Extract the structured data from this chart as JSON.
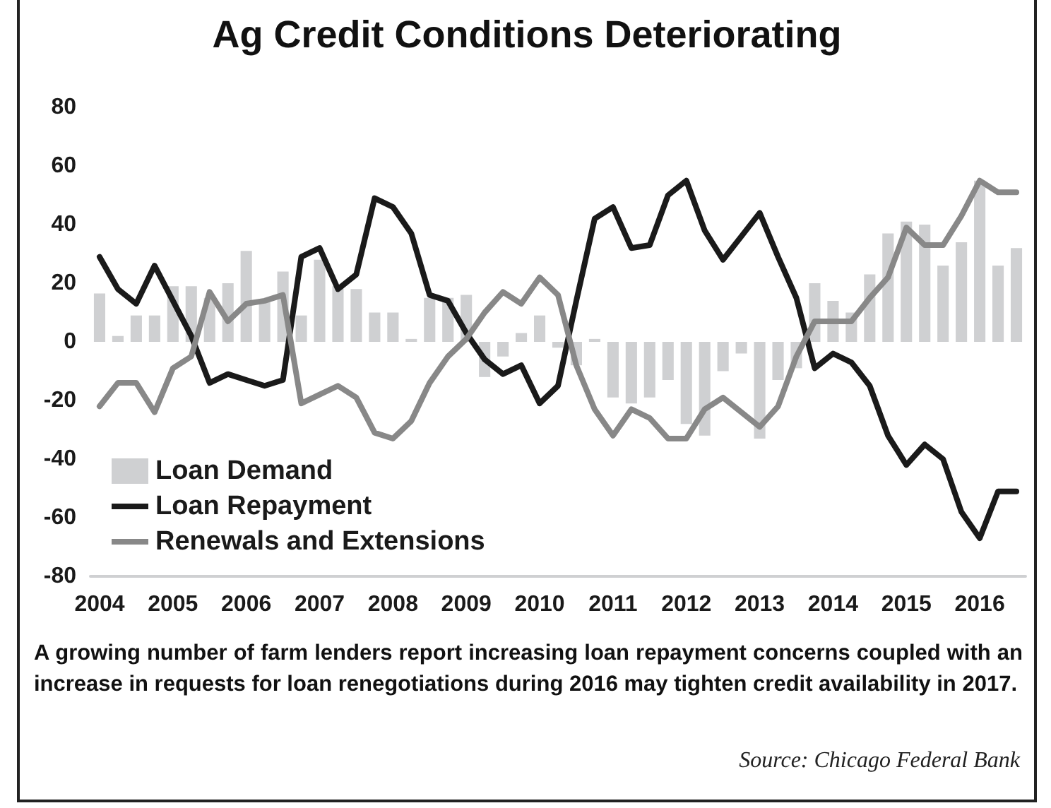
{
  "chart_data": {
    "type": "bar",
    "title": "Ag Credit Conditions Deteriorating",
    "categories": [
      "2004",
      null,
      null,
      null,
      "2005",
      null,
      null,
      null,
      "2006",
      null,
      null,
      null,
      "2007",
      null,
      null,
      null,
      "2008",
      null,
      null,
      null,
      "2009",
      null,
      null,
      null,
      "2010",
      null,
      null,
      null,
      "2011",
      null,
      null,
      null,
      "2012",
      null,
      null,
      null,
      "2013",
      null,
      null,
      null,
      "2014",
      null,
      null,
      null,
      "2015",
      null,
      null,
      null,
      "2016",
      null,
      null
    ],
    "series": [
      {
        "name": "Loan Demand",
        "color": "#cfd0d2",
        "values": [
          16.5,
          2,
          9,
          9,
          19,
          19,
          15,
          20,
          31,
          14,
          24,
          9,
          28,
          19,
          18,
          10,
          10,
          1,
          15,
          15,
          16,
          -12,
          -5,
          3,
          9,
          -2,
          -8,
          1,
          -19,
          -21,
          -19,
          -13,
          -28,
          -32,
          -10,
          -4,
          -33,
          -13,
          -9,
          20,
          14,
          10,
          23,
          37,
          41,
          40,
          26,
          34,
          55,
          26,
          32
        ]
      },
      {
        "name": "Loan Repayment",
        "type": "line",
        "color": "#1a1a1a",
        "values": [
          29,
          18,
          13,
          26,
          14,
          2,
          -14,
          -11,
          -13,
          -15,
          -13,
          29,
          32,
          18,
          23,
          49,
          46,
          37,
          16,
          14,
          3,
          -6,
          -11,
          -8,
          -21,
          -15,
          14,
          42,
          46,
          32,
          33,
          50,
          55,
          38,
          28,
          36,
          44,
          29,
          15,
          -9,
          -4,
          -7,
          -15,
          -32,
          -42,
          -35,
          -40,
          -58,
          -67,
          -51,
          -51
        ]
      },
      {
        "name": "Renewals and Extensions",
        "type": "line",
        "color": "#888888",
        "values": [
          -22,
          -14,
          -14,
          -24,
          -9,
          -5,
          17,
          7,
          13,
          14,
          16,
          -21,
          -18,
          -15,
          -19,
          -31,
          -33,
          -27,
          -14,
          -5,
          1,
          10,
          17,
          13,
          22,
          16,
          -8,
          -23,
          -32,
          -23,
          -26,
          -33,
          -33,
          -23,
          -19,
          -24,
          -29,
          -22,
          -5,
          7,
          7,
          7,
          15,
          22,
          39,
          33,
          33,
          43,
          55,
          51,
          51
        ]
      }
    ],
    "ylim": [
      -80,
      80
    ],
    "yticks": [
      -80,
      -60,
      -40,
      -20,
      0,
      20,
      40,
      60,
      80
    ],
    "grid": false,
    "legend": "bottom left",
    "marker": "none",
    "line_style": "solid",
    "annotations": [
      "A growing number of farm lenders report increasing loan repayment concerns coupled with an increase in requests for loan renegotiations during 2016 may tighten credit availability in 2017.",
      "Source: Chicago Federal Bank"
    ]
  }
}
